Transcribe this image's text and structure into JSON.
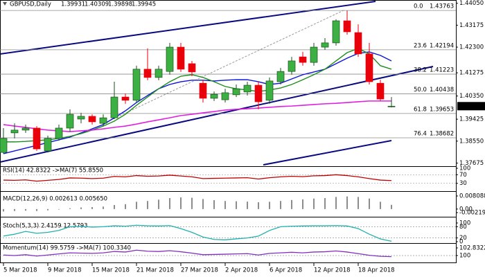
{
  "chart_data": {
    "type": "candlestick",
    "symbol": "GBPUSD,Daily",
    "categories": [
      "5 Mar 2018",
      null,
      null,
      null,
      "9 Mar 2018",
      null,
      null,
      null,
      "15 Mar 2018",
      null,
      null,
      null,
      "21 Mar 2018",
      null,
      null,
      null,
      "27 Mar 2018",
      null,
      null,
      null,
      "2 Apr 2018",
      null,
      null,
      null,
      "6 Apr 2018",
      null,
      null,
      null,
      "12 Apr 2018",
      null,
      null,
      null,
      "18 Apr 2018",
      null,
      null,
      null
    ],
    "open": [
      1.381,
      1.3888,
      1.3899,
      1.3907,
      1.3816,
      1.3866,
      1.3907,
      1.3943,
      1.3954,
      1.3926,
      1.3948,
      1.4031,
      1.4018,
      1.4142,
      1.4109,
      1.4133,
      1.423,
      1.4164,
      1.4086,
      1.4026,
      1.402,
      1.404,
      1.4051,
      1.4078,
      1.4018,
      1.4092,
      1.4133,
      1.4191,
      1.4169,
      1.423,
      1.4247,
      1.4335,
      1.4288,
      1.4203,
      1.4086,
      1.39931
    ],
    "high": [
      1.3907,
      1.3926,
      1.3921,
      1.3915,
      1.3877,
      1.3921,
      1.3982,
      1.3968,
      1.3962,
      1.3962,
      1.4092,
      1.4045,
      1.4156,
      1.4225,
      1.4156,
      1.4247,
      1.4247,
      1.4175,
      1.41,
      1.4053,
      1.4064,
      1.4081,
      1.4092,
      1.4092,
      1.4109,
      1.4147,
      1.4191,
      1.4211,
      1.4247,
      1.4266,
      1.4341,
      1.4376,
      1.4321,
      1.4247,
      1.41,
      1.40309
    ],
    "low": [
      1.3805,
      1.3866,
      1.3888,
      1.3816,
      1.381,
      1.3857,
      1.3893,
      1.3926,
      1.3921,
      1.3915,
      1.3943,
      1.4004,
      1.4009,
      1.4098,
      1.4098,
      1.412,
      1.4131,
      1.4114,
      1.4009,
      1.4015,
      1.4009,
      1.4031,
      1.4037,
      1.3982,
      1.4004,
      1.4081,
      1.412,
      1.4156,
      1.4156,
      1.4219,
      1.4236,
      1.428,
      1.4191,
      1.4081,
      1.4015,
      1.39898
    ],
    "close": [
      1.3866,
      1.3899,
      1.3907,
      1.3824,
      1.3866,
      1.3907,
      1.3962,
      1.3954,
      1.3932,
      1.3948,
      1.4031,
      1.4018,
      1.4142,
      1.4109,
      1.4142,
      1.423,
      1.4142,
      1.4131,
      1.4026,
      1.4042,
      1.4048,
      1.4064,
      1.4078,
      1.4012,
      1.4095,
      1.4133,
      1.4175,
      1.4169,
      1.423,
      1.4247,
      1.4335,
      1.4291,
      1.4203,
      1.4092,
      1.4023,
      1.39945
    ],
    "colors": {
      "up": "#3cb043",
      "down": "#e8000b",
      "outline": "#1a4d1a"
    },
    "overlays": [
      {
        "color": "#0a14d8",
        "values": [
          1.3805,
          1.3816,
          1.3827,
          1.3838,
          1.3849,
          1.386,
          1.3871,
          1.3888,
          1.3904,
          1.3921,
          1.3948,
          1.3976,
          1.4009,
          1.4037,
          1.4064,
          1.4081,
          1.4092,
          1.4098,
          1.4098,
          1.4095,
          1.4098,
          1.41,
          1.41,
          1.4092,
          1.4081,
          1.4086,
          1.4103,
          1.412,
          1.4131,
          1.4142,
          1.4164,
          1.4186,
          1.4205,
          1.4211,
          1.4197,
          1.4175
        ]
      },
      {
        "color": "#1e8c1e",
        "values": [
          1.3852,
          1.3852,
          1.3854,
          1.3857,
          1.386,
          1.3866,
          1.3874,
          1.3885,
          1.3899,
          1.3915,
          1.3935,
          1.3962,
          1.3998,
          1.4031,
          1.4064,
          1.4092,
          1.4114,
          1.412,
          1.4109,
          1.4092,
          1.4073,
          1.4064,
          1.4059,
          1.4053,
          1.4059,
          1.4067,
          1.4081,
          1.41,
          1.412,
          1.4142,
          1.4175,
          1.4208,
          1.4225,
          1.4203,
          1.4156,
          1.4142
        ]
      },
      {
        "color": "#e020e0",
        "values": [
          1.3921,
          1.3915,
          1.391,
          1.3904,
          1.3899,
          1.3896,
          1.3893,
          1.3896,
          1.3899,
          1.3904,
          1.391,
          1.3915,
          1.3923,
          1.3932,
          1.394,
          1.3948,
          1.3957,
          1.3962,
          1.3968,
          1.3973,
          1.3979,
          1.3982,
          1.3984,
          1.3987,
          1.399,
          1.3993,
          1.3995,
          1.3998,
          1.4001,
          1.4004,
          1.4006,
          1.4009,
          1.4012,
          1.4015,
          1.4015,
          1.4015
        ]
      }
    ],
    "fib_levels": [
      {
        "label": "0.0",
        "value": 1.43763
      },
      {
        "label": "23.6",
        "value": 1.42194
      },
      {
        "label": "38.2",
        "value": 1.41223
      },
      {
        "label": "50.0",
        "value": 1.40438
      },
      {
        "label": "61.8",
        "value": 1.39653
      },
      {
        "label": "76.4",
        "value": 1.38682
      }
    ],
    "ylim": [
      1.3755,
      1.4418
    ],
    "yticks": [
      {
        "value": 1.4405,
        "label": "1.44050"
      },
      1.43175,
      {
        "value": 1.423,
        "label": "1.42300"
      },
      1.41275,
      {
        "value": 1.4035,
        "label": "1.40350"
      },
      1.39425,
      {
        "value": 1.3855,
        "label": "1.38550"
      },
      1.37675
    ],
    "panels": [
      {
        "type": "line",
        "label": "RSI(14) 42.8322 ->MA(7) 55.8550",
        "color": "#c00000",
        "ylim": [
          0,
          100
        ],
        "yticks": [
          100,
          70,
          30
        ],
        "levels": [
          70,
          30
        ],
        "values": [
          45,
          44,
          46,
          40,
          44,
          48,
          55,
          54,
          52,
          54,
          62,
          60,
          66,
          63,
          64,
          68,
          64,
          60,
          52,
          53,
          54,
          55,
          56,
          50,
          56,
          60,
          63,
          61,
          65,
          66,
          70,
          66,
          60,
          52,
          45,
          42.8322
        ]
      },
      {
        "type": "histogram",
        "label": "MACD(12,26,9) 0.002613 0.005650",
        "color": "#8c8c8c",
        "ylim": [
          -0.002197,
          0.008088
        ],
        "yticks": [
          0.008088,
          {
            "value": 0,
            "label": "0.00"
          },
          -0.002197
        ],
        "values": [
          -0.0015,
          -0.0012,
          -0.001,
          -0.0012,
          -0.0008,
          -0.0003,
          0.0005,
          0.001,
          0.0012,
          0.0015,
          0.0025,
          0.003,
          0.0045,
          0.005,
          0.0058,
          0.0068,
          0.0072,
          0.007,
          0.0062,
          0.0055,
          0.005,
          0.0048,
          0.0046,
          0.0042,
          0.0045,
          0.005,
          0.0056,
          0.006,
          0.0065,
          0.0068,
          0.0075,
          0.0078,
          0.0075,
          0.0065,
          0.0045,
          0.002613
        ]
      },
      {
        "type": "line",
        "label": "Stoch(5,3,3) 2.4159 12.5793",
        "color": "#20b0b0",
        "ylim": [
          0,
          100
        ],
        "yticks": [
          100,
          80,
          20,
          0
        ],
        "levels": [
          80,
          20
        ],
        "values": [
          30,
          40,
          55,
          45,
          50,
          60,
          80,
          82,
          78,
          80,
          85,
          83,
          88,
          85,
          84,
          86,
          70,
          50,
          25,
          12,
          10,
          15,
          20,
          30,
          60,
          80,
          83,
          84,
          85,
          85,
          86,
          84,
          70,
          40,
          15,
          2.4159
        ]
      },
      {
        "type": "line",
        "label": "Momentum(14) 99.5759 ->MA(7) 100.3340",
        "color": "#8030c0",
        "ylim": [
          97.42,
          104.12
        ],
        "yticks": [
          102.8322,
          100
        ],
        "levels": [
          100
        ],
        "values": [
          100.2,
          100,
          100.3,
          99.8,
          100.2,
          100.6,
          101,
          100.9,
          100.8,
          101,
          101.5,
          101.3,
          102,
          101.6,
          101.5,
          101.8,
          101.4,
          100.9,
          100.3,
          100.4,
          100.5,
          100.6,
          100.7,
          100.2,
          100.8,
          101,
          101.2,
          101,
          101.3,
          101.4,
          101.7,
          101.3,
          100.7,
          100.1,
          99.7,
          99.5759
        ]
      }
    ]
  }
}
